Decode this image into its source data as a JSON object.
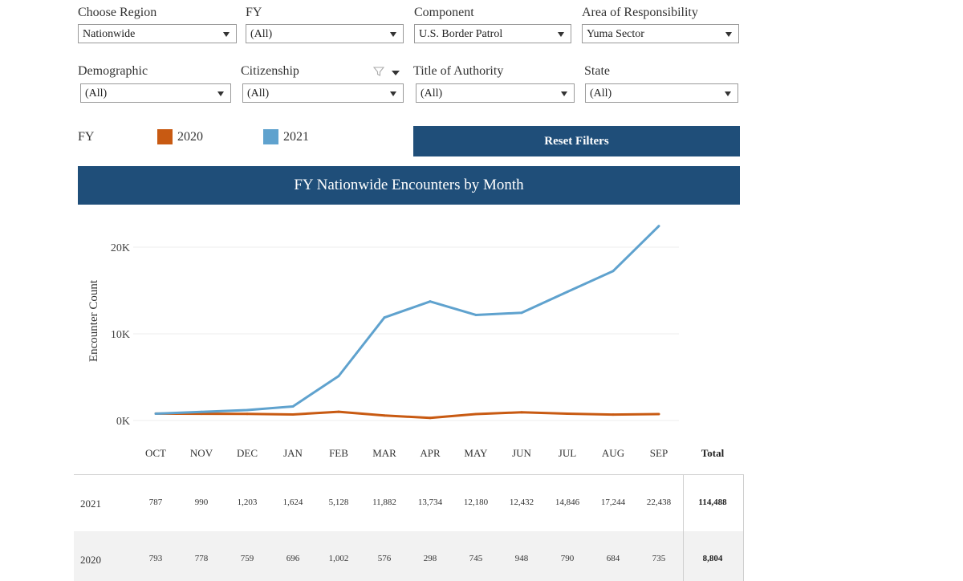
{
  "filters_row1": [
    {
      "label": "Choose Region",
      "value": "Nationwide"
    },
    {
      "label": "FY",
      "value": "(All)"
    },
    {
      "label": "Component",
      "value": "U.S. Border Patrol"
    },
    {
      "label": "Area of Responsibility",
      "value": "Yuma Sector"
    }
  ],
  "filters_row2": [
    {
      "label": "Demographic",
      "value": "(All)"
    },
    {
      "label": "Citizenship",
      "value": "(All)"
    },
    {
      "label": "Title of Authority",
      "value": "(All)"
    },
    {
      "label": "State",
      "value": "(All)"
    }
  ],
  "legend": {
    "title": "FY",
    "items": [
      {
        "label": "2020",
        "color": "#c85a12"
      },
      {
        "label": "2021",
        "color": "#5fa2ce"
      }
    ]
  },
  "reset_label": "Reset Filters",
  "banner_title": "FY Nationwide Encounters by Month",
  "chart_data": {
    "type": "line",
    "title": "FY Nationwide Encounters by Month",
    "ylabel": "Encounter Count",
    "xlabel": "",
    "ylim": [
      0,
      23000
    ],
    "yticks": [
      {
        "value": 0,
        "label": "0K"
      },
      {
        "value": 10000,
        "label": "10K"
      },
      {
        "value": 20000,
        "label": "20K"
      }
    ],
    "categories": [
      "OCT",
      "NOV",
      "DEC",
      "JAN",
      "FEB",
      "MAR",
      "APR",
      "MAY",
      "JUN",
      "JUL",
      "AUG",
      "SEP"
    ],
    "series": [
      {
        "name": "2021",
        "color": "#5fa2ce",
        "values": [
          787,
          990,
          1203,
          1624,
          5128,
          11882,
          13734,
          12180,
          12432,
          14846,
          17244,
          22438
        ]
      },
      {
        "name": "2020",
        "color": "#c85a12",
        "values": [
          793,
          778,
          759,
          696,
          1002,
          576,
          298,
          745,
          948,
          790,
          684,
          735
        ]
      }
    ]
  },
  "table": {
    "total_header": "Total",
    "rows": [
      {
        "year": "2021",
        "cells": [
          "787",
          "990",
          "1,203",
          "1,624",
          "5,128",
          "11,882",
          "13,734",
          "12,180",
          "12,432",
          "14,846",
          "17,244",
          "22,438"
        ],
        "total": "114,488"
      },
      {
        "year": "2020",
        "cells": [
          "793",
          "778",
          "759",
          "696",
          "1,002",
          "576",
          "298",
          "745",
          "948",
          "790",
          "684",
          "735"
        ],
        "total": "8,804"
      }
    ]
  }
}
